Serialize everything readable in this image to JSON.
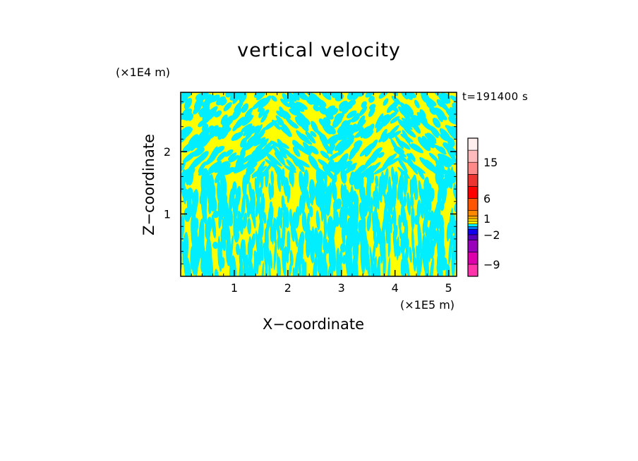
{
  "chart_data": {
    "type": "heatmap",
    "title": "vertical velocity",
    "xlabel": "X−coordinate",
    "ylabel": "Z−coordinate",
    "x_unit": "(×1E5 m)",
    "y_unit": "(×1E4 m)",
    "annotation": "t=191400 s",
    "xlim": [
      0,
      5.15
    ],
    "ylim": [
      0,
      2.95
    ],
    "x_ticks": [
      {
        "value": 1,
        "label": "1"
      },
      {
        "value": 2,
        "label": "2"
      },
      {
        "value": 3,
        "label": "3"
      },
      {
        "value": 4,
        "label": "4"
      },
      {
        "value": 5,
        "label": "5"
      }
    ],
    "y_ticks": [
      {
        "value": 1,
        "label": "1"
      },
      {
        "value": 2,
        "label": "2"
      }
    ],
    "field_colors": {
      "negative": "#00eeff",
      "positive": "#ffff00"
    },
    "colorbar": {
      "range": [
        -12,
        21
      ],
      "bounds": [
        -12,
        -9,
        -6,
        -3,
        -2,
        -1,
        -0.5,
        0,
        0.5,
        1,
        1.5,
        3,
        6,
        9,
        12,
        15,
        18,
        21
      ],
      "colors": [
        "#ff33aa",
        "#dd00aa",
        "#9900bb",
        "#5500bb",
        "#1100ee",
        "#0077ff",
        "#00eeff",
        "#ffff00",
        "#ffdd00",
        "#ffaa00",
        "#ff8800",
        "#ff5500",
        "#ff0000",
        "#ee3333",
        "#ff8888",
        "#ffbbbb",
        "#ffeeee"
      ],
      "labels": [
        {
          "value": 15,
          "label": "15"
        },
        {
          "value": 6,
          "label": "6"
        },
        {
          "value": 1,
          "label": "1"
        },
        {
          "value": -2,
          "label": "−2"
        },
        {
          "value": -9,
          "label": "−9"
        }
      ]
    }
  }
}
